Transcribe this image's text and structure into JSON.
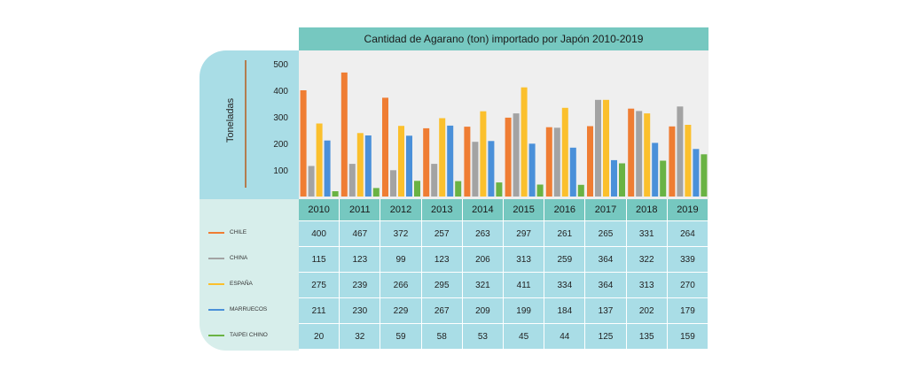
{
  "chart_data": {
    "type": "bar",
    "title": "Cantidad de Agarano (ton) importado por Japón 2010-2019",
    "xlabel": "",
    "ylabel": "Toneladas",
    "ylim": [
      0,
      550
    ],
    "yticks": [
      100,
      200,
      300,
      400,
      500
    ],
    "categories": [
      "2010",
      "2011",
      "2012",
      "2013",
      "2014",
      "2015",
      "2016",
      "2017",
      "2018",
      "2019"
    ],
    "series": [
      {
        "name": "CHILE",
        "color": "#ef7d33",
        "values": [
          400,
          467,
          372,
          257,
          263,
          297,
          261,
          265,
          331,
          264
        ]
      },
      {
        "name": "CHINA",
        "color": "#a3a3a3",
        "values": [
          115,
          123,
          99,
          123,
          206,
          313,
          259,
          364,
          322,
          339
        ]
      },
      {
        "name": "ESPAÑA",
        "color": "#fbc02d",
        "values": [
          275,
          239,
          266,
          295,
          321,
          411,
          334,
          364,
          313,
          270
        ]
      },
      {
        "name": "MARRUECOS",
        "color": "#4a90d9",
        "values": [
          211,
          230,
          229,
          267,
          209,
          199,
          184,
          137,
          202,
          179
        ]
      },
      {
        "name": "TAIPEI CHINO",
        "color": "#6ab344",
        "values": [
          20,
          32,
          59,
          58,
          53,
          45,
          44,
          125,
          135,
          159
        ]
      }
    ],
    "legend_position": "left-of-table"
  }
}
